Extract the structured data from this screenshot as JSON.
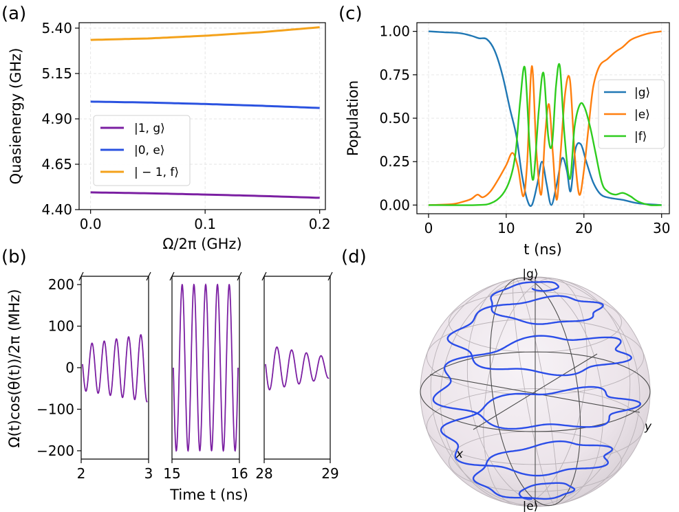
{
  "chart_data": [
    {
      "panel": "(a)",
      "type": "line",
      "xlabel": "Ω/2π (GHz)",
      "ylabel": "Quasienergy (GHz)",
      "xlim": [
        -0.01,
        0.205
      ],
      "ylim": [
        4.4,
        5.43
      ],
      "xticks": [
        "0.0",
        "0.1",
        "0.2"
      ],
      "yticks": [
        "4.40",
        "4.65",
        "4.90",
        "5.15",
        "5.40"
      ],
      "grid": true,
      "legend_position": "center-left",
      "x": [
        0.0,
        0.05,
        0.1,
        0.15,
        0.2
      ],
      "series": [
        {
          "name": "|1, g⟩",
          "color": "#7b1fa2",
          "values": [
            4.495,
            4.49,
            4.483,
            4.475,
            4.465
          ]
        },
        {
          "name": "|0, e⟩",
          "color": "#2a52e0",
          "values": [
            4.995,
            4.99,
            4.982,
            4.972,
            4.96
          ]
        },
        {
          "name": "| − 1, f⟩",
          "color": "#f4a21b",
          "values": [
            5.335,
            5.343,
            5.358,
            5.378,
            5.405
          ]
        }
      ]
    },
    {
      "panel": "(b)",
      "type": "line",
      "xlabel": "Time t (ns)",
      "ylabel": "Ω(t)cos(θ(t))/2π (MHz)",
      "ylim": [
        -220,
        220
      ],
      "yticks": [
        "200",
        "100",
        "0",
        "−100",
        "−200"
      ],
      "color": "#7b1fa2",
      "segments": [
        {
          "xlim": [
            2,
            3
          ],
          "xticks": [
            "2",
            "3"
          ],
          "amplitude_start": 55,
          "amplitude_end": 82,
          "cycles": 5.3
        },
        {
          "xlim": [
            15,
            16
          ],
          "xticks": [
            "15",
            "16"
          ],
          "amplitude_start": 200,
          "amplitude_end": 200,
          "cycles": 5.5
        },
        {
          "xlim": [
            28,
            29
          ],
          "xticks": [
            "28",
            "29"
          ],
          "amplitude_start": 55,
          "amplitude_end": 25,
          "cycles": 4.3
        }
      ]
    },
    {
      "panel": "(c)",
      "type": "line",
      "xlabel": "t (ns)",
      "ylabel": "Population",
      "xlim": [
        -1.5,
        31
      ],
      "ylim": [
        -0.05,
        1.05
      ],
      "xticks": [
        "0",
        "10",
        "20",
        "30"
      ],
      "yticks": [
        "0.00",
        "0.25",
        "0.50",
        "0.75",
        "1.00"
      ],
      "grid": true,
      "legend_position": "center-right",
      "series": [
        {
          "name": "|g⟩",
          "color": "#1f77b4",
          "points": [
            [
              0,
              1.0
            ],
            [
              2,
              0.995
            ],
            [
              4,
              0.99
            ],
            [
              5.5,
              0.975
            ],
            [
              6.5,
              0.96
            ],
            [
              7.5,
              0.955
            ],
            [
              8.5,
              0.89
            ],
            [
              9.5,
              0.75
            ],
            [
              10.5,
              0.55
            ],
            [
              11.3,
              0.4
            ],
            [
              12,
              0.18
            ],
            [
              12.7,
              0.03
            ],
            [
              13.3,
              0.0
            ],
            [
              14,
              0.12
            ],
            [
              14.6,
              0.25
            ],
            [
              15.2,
              0.12
            ],
            [
              15.8,
              0.0
            ],
            [
              16.5,
              0.12
            ],
            [
              17.2,
              0.27
            ],
            [
              17.8,
              0.2
            ],
            [
              18.3,
              0.08
            ],
            [
              18.9,
              0.32
            ],
            [
              19.6,
              0.35
            ],
            [
              20.3,
              0.25
            ],
            [
              21.2,
              0.13
            ],
            [
              22.2,
              0.06
            ],
            [
              23.5,
              0.04
            ],
            [
              25,
              0.03
            ],
            [
              27,
              0.01
            ],
            [
              30,
              0.0
            ]
          ]
        },
        {
          "name": "|e⟩",
          "color": "#ff7f0e",
          "points": [
            [
              0,
              0.0
            ],
            [
              3,
              0.005
            ],
            [
              4.5,
              0.02
            ],
            [
              5.5,
              0.035
            ],
            [
              6.3,
              0.06
            ],
            [
              7,
              0.045
            ],
            [
              8,
              0.08
            ],
            [
              9,
              0.15
            ],
            [
              10,
              0.23
            ],
            [
              10.8,
              0.3
            ],
            [
              11.5,
              0.22
            ],
            [
              12.2,
              0.05
            ],
            [
              12.7,
              0.25
            ],
            [
              13.3,
              0.8
            ],
            [
              13.9,
              0.3
            ],
            [
              14.5,
              0.06
            ],
            [
              15,
              0.4
            ],
            [
              15.5,
              0.58
            ],
            [
              16,
              0.3
            ],
            [
              16.5,
              0.03
            ],
            [
              17,
              0.3
            ],
            [
              17.6,
              0.65
            ],
            [
              18.2,
              0.72
            ],
            [
              18.8,
              0.3
            ],
            [
              19.4,
              0.06
            ],
            [
              20,
              0.2
            ],
            [
              20.6,
              0.45
            ],
            [
              21.2,
              0.68
            ],
            [
              22,
              0.8
            ],
            [
              23,
              0.84
            ],
            [
              24,
              0.88
            ],
            [
              25,
              0.91
            ],
            [
              26,
              0.95
            ],
            [
              27,
              0.97
            ],
            [
              28.5,
              0.99
            ],
            [
              30,
              1.0
            ]
          ]
        },
        {
          "name": "|f⟩",
          "color": "#2ecc1e",
          "points": [
            [
              0,
              0.0
            ],
            [
              6,
              0.0
            ],
            [
              8,
              0.01
            ],
            [
              9.5,
              0.06
            ],
            [
              10.5,
              0.15
            ],
            [
              11.2,
              0.3
            ],
            [
              11.8,
              0.6
            ],
            [
              12.4,
              0.79
            ],
            [
              13,
              0.35
            ],
            [
              13.5,
              0.15
            ],
            [
              14.2,
              0.55
            ],
            [
              14.8,
              0.76
            ],
            [
              15.4,
              0.4
            ],
            [
              15.9,
              0.35
            ],
            [
              16.4,
              0.68
            ],
            [
              16.9,
              0.8
            ],
            [
              17.5,
              0.4
            ],
            [
              18.2,
              0.15
            ],
            [
              18.8,
              0.45
            ],
            [
              19.5,
              0.58
            ],
            [
              20.1,
              0.56
            ],
            [
              20.8,
              0.45
            ],
            [
              21.5,
              0.3
            ],
            [
              22.3,
              0.13
            ],
            [
              23,
              0.08
            ],
            [
              24,
              0.06
            ],
            [
              25,
              0.07
            ],
            [
              26,
              0.05
            ],
            [
              27,
              0.02
            ],
            [
              28.5,
              0.0
            ],
            [
              30,
              0.0
            ]
          ]
        }
      ]
    },
    {
      "panel": "(d)",
      "type": "other",
      "description_labels": {
        "top": "|g⟩",
        "bottom": "|e⟩",
        "x": "x",
        "y": "y"
      },
      "trajectory_color": "#2a4de8"
    }
  ],
  "panels": {
    "a": "(a)",
    "b": "(b)",
    "c": "(c)",
    "d": "(d)"
  }
}
